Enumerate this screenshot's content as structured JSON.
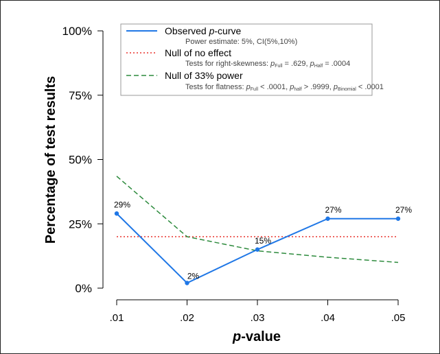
{
  "chart_data": {
    "type": "line",
    "x": [
      ".01",
      ".02",
      ".03",
      ".04",
      ".05"
    ],
    "ylim": [
      0,
      100
    ],
    "yticks": [
      "0%",
      "25%",
      "50%",
      "75%",
      "100%"
    ],
    "ylabel": "Percentage of test results",
    "xlabel_italic": "p",
    "xlabel_rest": "-value",
    "series": [
      {
        "key": "observed",
        "values": [
          29,
          2,
          15,
          27,
          27
        ],
        "labels": [
          "29%",
          "2%",
          "15%",
          "27%",
          "27%"
        ],
        "color": "#1f77e6",
        "style": "solid",
        "markers": true
      },
      {
        "key": "null",
        "values": [
          20,
          20,
          20,
          20,
          20
        ],
        "color": "#e8302a",
        "style": "dotted"
      },
      {
        "key": "power33",
        "values": [
          43.5,
          20,
          14.5,
          12,
          10
        ],
        "color": "#2c8a3c",
        "style": "dashed"
      }
    ],
    "legend": {
      "position": "top",
      "entries": [
        {
          "main_pre": "Observed ",
          "main_italic": "p",
          "main_post": "-curve",
          "sub": "Power estimate: 5%, CI(5%,10%)"
        },
        {
          "main": "Null of no effect",
          "sub_pre": "Tests for right-skewness: ",
          "sub_p1": "p",
          "sub_s1": "Full",
          "sub_v1": " = .629,  ",
          "sub_p2": "p",
          "sub_s2": "Half",
          "sub_v2": " = .0004"
        },
        {
          "main": "Null of 33% power",
          "sub_pre": "Tests for flatness: ",
          "sub_p1": "p",
          "sub_s1": "Full",
          "sub_v1": "  < .0001,  ",
          "sub_p2": "p",
          "sub_s2": "half",
          "sub_v2": "  > .9999,  ",
          "sub_p3": "p",
          "sub_s3": "Binomial",
          "sub_v3": "  < .0001"
        }
      ]
    }
  }
}
